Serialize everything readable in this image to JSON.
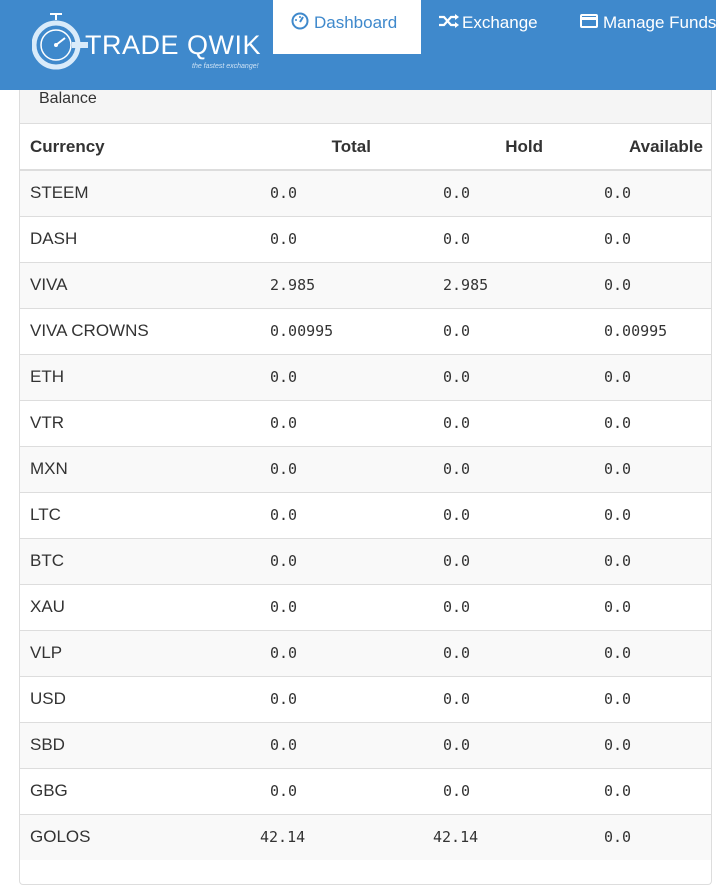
{
  "brand": {
    "name": "TRADE QWIK",
    "tagline": "the fastest exchange!"
  },
  "nav": {
    "items": [
      {
        "label": "Dashboard",
        "icon": "dashboard-icon",
        "active": true
      },
      {
        "label": "Exchange",
        "icon": "shuffle-icon",
        "active": false
      },
      {
        "label": "Manage Funds",
        "icon": "credit-card-icon",
        "active": false
      }
    ]
  },
  "balance": {
    "heading": "Balance",
    "columns": [
      "Currency",
      "Total",
      "Hold",
      "Available"
    ],
    "rows": [
      {
        "currency": "STEEM",
        "total": "0.0",
        "hold": "0.0",
        "available": "0.0"
      },
      {
        "currency": "DASH",
        "total": "0.0",
        "hold": "0.0",
        "available": "0.0"
      },
      {
        "currency": "VIVA",
        "total": "2.985",
        "hold": "2.985",
        "available": "0.0"
      },
      {
        "currency": "VIVA CROWNS",
        "total": "0.00995",
        "hold": "0.0",
        "available": "0.00995"
      },
      {
        "currency": "ETH",
        "total": "0.0",
        "hold": "0.0",
        "available": "0.0"
      },
      {
        "currency": "VTR",
        "total": "0.0",
        "hold": "0.0",
        "available": "0.0"
      },
      {
        "currency": "MXN",
        "total": "0.0",
        "hold": "0.0",
        "available": "0.0"
      },
      {
        "currency": "LTC",
        "total": "0.0",
        "hold": "0.0",
        "available": "0.0"
      },
      {
        "currency": "BTC",
        "total": "0.0",
        "hold": "0.0",
        "available": "0.0"
      },
      {
        "currency": "XAU",
        "total": "0.0",
        "hold": "0.0",
        "available": "0.0"
      },
      {
        "currency": "VLP",
        "total": "0.0",
        "hold": "0.0",
        "available": "0.0"
      },
      {
        "currency": "USD",
        "total": "0.0",
        "hold": "0.0",
        "available": "0.0"
      },
      {
        "currency": "SBD",
        "total": "0.0",
        "hold": "0.0",
        "available": "0.0"
      },
      {
        "currency": "GBG",
        "total": "0.0",
        "hold": "0.0",
        "available": "0.0"
      },
      {
        "currency": "GOLOS",
        "total": "42.14",
        "hold": "42.14",
        "available": "0.0"
      }
    ]
  },
  "colors": {
    "navbar": "#3f89cc",
    "stripe": "#f9f9f9",
    "border": "#dddddd"
  }
}
